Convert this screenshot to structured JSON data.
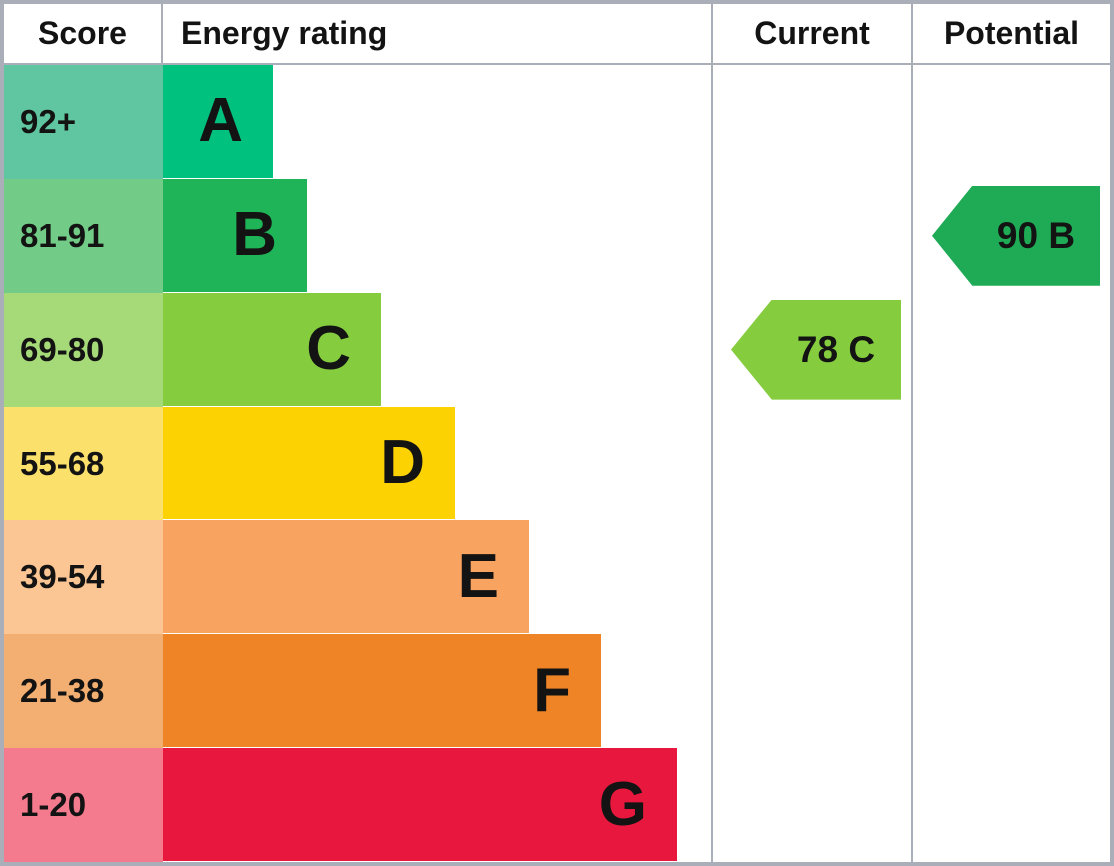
{
  "headers": {
    "score": "Score",
    "energy_rating": "Energy rating",
    "current": "Current",
    "potential": "Potential"
  },
  "rows": [
    {
      "score": "92+",
      "rating": "A",
      "score_bg": "#60c6a1",
      "bar_color": "#00c17e"
    },
    {
      "score": "81-91",
      "rating": "B",
      "score_bg": "#72cb86",
      "bar_color": "#1fb457"
    },
    {
      "score": "69-80",
      "rating": "C",
      "score_bg": "#a6da78",
      "bar_color": "#85cc3f"
    },
    {
      "score": "55-68",
      "rating": "D",
      "score_bg": "#fbe16b",
      "bar_color": "#fcd203"
    },
    {
      "score": "39-54",
      "rating": "E",
      "score_bg": "#fbc693",
      "bar_color": "#f9a360"
    },
    {
      "score": "21-38",
      "rating": "F",
      "score_bg": "#f3ae71",
      "bar_color": "#ef8426"
    },
    {
      "score": "1-20",
      "rating": "G",
      "score_bg": "#f47a8e",
      "bar_color": "#e8173d"
    }
  ],
  "current": {
    "label": "78 C",
    "value": 78,
    "rating": "C",
    "color": "#85cc3f"
  },
  "potential": {
    "label": "90 B",
    "value": 90,
    "rating": "B",
    "color": "#1fab55"
  },
  "colors": {
    "border": "#aaaeb9",
    "text": "#131313",
    "background": "#ffffff"
  },
  "chart_data": {
    "type": "bar",
    "title": "",
    "columns": [
      "Score",
      "Energy rating",
      "Current",
      "Potential"
    ],
    "categories": [
      "A",
      "B",
      "C",
      "D",
      "E",
      "F",
      "G"
    ],
    "score_ranges": [
      "92+",
      "81-91",
      "69-80",
      "55-68",
      "39-54",
      "21-38",
      "1-20"
    ],
    "bar_widths_pct": [
      20.1,
      26.3,
      39.8,
      53.3,
      66.8,
      79.9,
      93.8
    ],
    "band_colors": [
      "#00c17e",
      "#1fb457",
      "#85cc3f",
      "#fcd203",
      "#f9a360",
      "#ef8426",
      "#e8173d"
    ],
    "current": {
      "score": 78,
      "rating": "C"
    },
    "potential": {
      "score": 90,
      "rating": "B"
    },
    "legend_position": "none",
    "grid": false
  }
}
